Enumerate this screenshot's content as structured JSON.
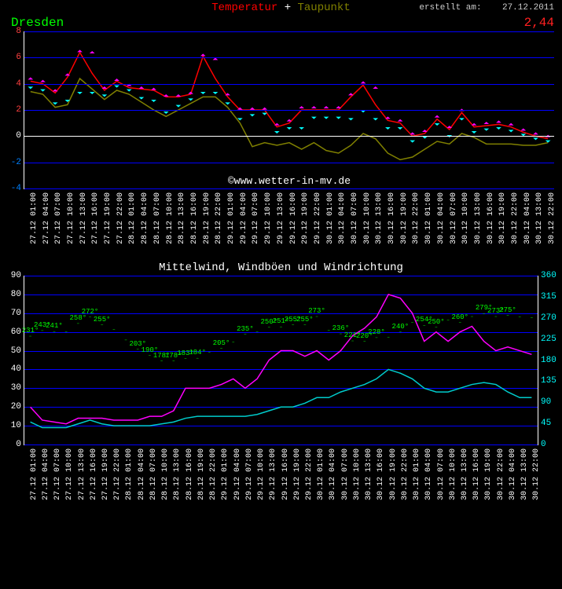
{
  "header": {
    "series1_label": "Temperatur",
    "plus": "+",
    "series2_label": "Taupunkt",
    "created_prefix": "erstellt am:",
    "created_date": "27.12.2011"
  },
  "chart1": {
    "location": "Dresden",
    "value_label": "2,44",
    "y_min": -4,
    "y_max": 8,
    "y_ticks": [
      -4,
      -2,
      0,
      2,
      4,
      6,
      8
    ],
    "gridline_color": "#0000ff",
    "zeroline_color": "#ffffff",
    "temperature": {
      "color": "#ff0000",
      "values": [
        4.2,
        4.0,
        3.3,
        4.5,
        6.4,
        4.8,
        3.5,
        4.2,
        3.7,
        3.6,
        3.5,
        3.0,
        3.0,
        3.2,
        6.1,
        4.4,
        3.0,
        2.0,
        2.0,
        2.0,
        0.7,
        1.0,
        2.0,
        2.0,
        2.0,
        2.0,
        3.0,
        3.9,
        2.4,
        1.2,
        1.0,
        0.0,
        0.2,
        1.3,
        0.5,
        1.8,
        0.7,
        0.8,
        0.9,
        0.7,
        0.3,
        0.0,
        -0.2
      ]
    },
    "dewpoint": {
      "color": "#808000",
      "values": [
        3.4,
        3.2,
        2.2,
        2.4,
        4.4,
        3.6,
        2.8,
        3.5,
        3.2,
        2.6,
        2.0,
        1.5,
        2.0,
        2.5,
        3.0,
        3.0,
        2.2,
        1.0,
        -0.8,
        -0.5,
        -0.7,
        -0.5,
        -1.0,
        -0.5,
        -1.1,
        -1.3,
        -0.7,
        0.2,
        -0.2,
        -1.3,
        -1.8,
        -1.6,
        -1.0,
        -0.4,
        -0.6,
        0.2,
        -0.1,
        -0.6,
        -0.6,
        -0.6,
        -0.7,
        -0.7,
        -0.5
      ]
    },
    "markers_up": {
      "color": "#ff00ff",
      "values": [
        4.5,
        4.3,
        3.6,
        4.8,
        6.6,
        6.5,
        3.8,
        4.4,
        4.0,
        3.8,
        3.7,
        3.2,
        3.2,
        3.4,
        6.3,
        6.0,
        3.3,
        2.2,
        2.2,
        2.2,
        1.0,
        1.3,
        2.3,
        2.3,
        2.3,
        2.3,
        3.3,
        4.2,
        3.8,
        1.5,
        1.3,
        0.3,
        0.5,
        1.6,
        0.8,
        2.1,
        1.0,
        1.1,
        1.2,
        1.0,
        0.6,
        0.3,
        0.1
      ]
    },
    "markers_down": {
      "color": "#00ffff",
      "values": [
        3.6,
        3.4,
        2.4,
        2.6,
        3.2,
        3.2,
        3.0,
        3.7,
        3.4,
        2.8,
        2.6,
        1.7,
        2.2,
        2.7,
        3.2,
        3.2,
        2.4,
        1.2,
        1.5,
        1.6,
        0.2,
        0.5,
        0.5,
        1.3,
        1.3,
        1.3,
        1.2,
        1.8,
        1.2,
        0.5,
        0.5,
        -0.5,
        -0.2,
        0.8,
        -0.1,
        1.2,
        0.2,
        0.4,
        0.5,
        0.3,
        0.0,
        -0.3,
        -0.5
      ]
    },
    "watermark": "©www.wetter-in-mv.de"
  },
  "xaxis": {
    "labels_time": [
      "01:00",
      "04:00",
      "07:00",
      "10:00",
      "13:00",
      "16:00",
      "19:00",
      "22:00",
      "01:00",
      "04:00",
      "07:00",
      "10:00",
      "13:00",
      "16:00",
      "19:00",
      "22:00",
      "01:00",
      "04:00",
      "07:00",
      "10:00",
      "13:00",
      "16:00",
      "19:00",
      "22:00",
      "01:00",
      "04:00",
      "07:00",
      "10:00",
      "13:00",
      "16:00",
      "19:00",
      "22:00",
      "01:00",
      "04:00",
      "07:00",
      "10:00",
      "13:00",
      "16:00",
      "19:00",
      "22:00",
      "04:00",
      "13:00",
      "22:00"
    ],
    "labels_date": [
      "27.12",
      "27.12",
      "27.12",
      "27.12",
      "27.12",
      "27.12",
      "27.12",
      "27.12",
      "28.12",
      "28.12",
      "28.12",
      "28.12",
      "28.12",
      "28.12",
      "28.12",
      "28.12",
      "29.12",
      "29.12",
      "29.12",
      "29.12",
      "29.12",
      "29.12",
      "29.12",
      "29.12",
      "30.12",
      "30.12",
      "30.12",
      "30.12",
      "30.12",
      "30.12",
      "30.12",
      "30.12",
      "30.12",
      "30.12",
      "30.12",
      "30.12",
      "30.12",
      "30.12",
      "30.12",
      "30.12",
      "30.12",
      "30.12",
      "30.12"
    ]
  },
  "chart2": {
    "title": "Mittelwind, Windböen und Windrichtung",
    "y_left_min": 0,
    "y_left_max": 90,
    "y_left_ticks": [
      0,
      10,
      20,
      30,
      40,
      50,
      60,
      70,
      80,
      90
    ],
    "y_right_min": 0,
    "y_right_max": 360,
    "y_right_ticks": [
      0,
      45,
      90,
      135,
      180,
      225,
      270,
      315,
      360
    ],
    "y_right_color": "#00ffff",
    "gusts": {
      "color": "#ff00ff",
      "values": [
        20,
        13,
        12,
        11,
        14,
        14,
        14,
        13,
        13,
        13,
        15,
        15,
        18,
        30,
        30,
        30,
        32,
        35,
        30,
        35,
        45,
        50,
        50,
        47,
        50,
        45,
        50,
        58,
        62,
        68,
        80,
        78,
        70,
        55,
        60,
        55,
        60,
        63,
        55,
        50,
        52,
        50,
        48
      ]
    },
    "mean_wind": {
      "color": "#00cccc",
      "values": [
        12,
        9,
        9,
        9,
        11,
        13,
        11,
        10,
        10,
        10,
        10,
        11,
        12,
        14,
        15,
        15,
        15,
        15,
        15,
        16,
        18,
        20,
        20,
        22,
        25,
        25,
        28,
        30,
        32,
        35,
        40,
        38,
        35,
        30,
        28,
        28,
        30,
        32,
        33,
        32,
        28,
        25,
        25
      ]
    },
    "direction": {
      "color": "#00ff00",
      "label_color": "#00ff00",
      "values": [
        231,
        243,
        241,
        240,
        258,
        272,
        255,
        245,
        223,
        203,
        190,
        178,
        178,
        183,
        184,
        197,
        205,
        219,
        235,
        241,
        250,
        251,
        255,
        255,
        273,
        244,
        236,
        221,
        220,
        228,
        229,
        240,
        260,
        254,
        250,
        265,
        260,
        273,
        279,
        273,
        275,
        272,
        270
      ],
      "show_label": [
        1,
        1,
        1,
        0,
        1,
        1,
        1,
        0,
        0,
        1,
        1,
        1,
        1,
        1,
        1,
        0,
        1,
        0,
        1,
        0,
        1,
        1,
        1,
        1,
        1,
        0,
        1,
        1,
        1,
        1,
        0,
        1,
        0,
        1,
        1,
        0,
        1,
        0,
        1,
        1,
        1,
        0,
        0
      ]
    }
  },
  "colors": {
    "temperature": "#ff0000",
    "dewpoint": "#808000",
    "plus": "#ffffff",
    "created": "#cccccc",
    "location": "#00ff00",
    "value_label": "#ff2020",
    "yaxis_neg": "#0080ff",
    "yaxis_pos": "#ff4040"
  }
}
